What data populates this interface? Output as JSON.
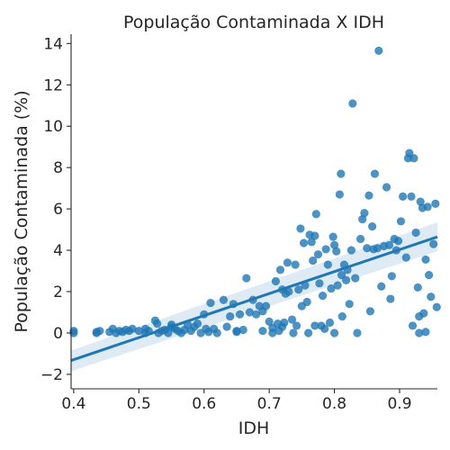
{
  "chart_data": {
    "type": "scatter",
    "title": "População Contaminada X IDH",
    "xlabel": "IDH",
    "ylabel": "População Contaminada (%)",
    "xlim": [
      0.396,
      0.958
    ],
    "ylim": [
      -2.7,
      14.45
    ],
    "xticks": [
      0.4,
      0.5,
      0.6,
      0.7,
      0.8,
      0.9
    ],
    "xtick_labels": [
      "0.4",
      "0.5",
      "0.6",
      "0.7",
      "0.8",
      "0.9"
    ],
    "yticks": [
      -2,
      0,
      2,
      4,
      6,
      8,
      10,
      12,
      14
    ],
    "ytick_labels": [
      "−2",
      "0",
      "2",
      "4",
      "6",
      "8",
      "10",
      "12",
      "14"
    ],
    "grid": false,
    "colors": {
      "points": "#1f77b4",
      "line": "#1f77b4",
      "band": "#1f77b4"
    },
    "regression": {
      "x": [
        0.396,
        0.958
      ],
      "y": [
        -1.33,
        4.65
      ],
      "ci_lower": [
        -1.85,
        3.95
      ],
      "ci_upper": [
        -0.85,
        5.35
      ]
    },
    "points": [
      [
        0.4,
        0.1
      ],
      [
        0.4,
        0.0
      ],
      [
        0.435,
        0.05
      ],
      [
        0.435,
        0.0
      ],
      [
        0.44,
        0.1
      ],
      [
        0.455,
        0.05
      ],
      [
        0.46,
        0.2
      ],
      [
        0.465,
        0.0
      ],
      [
        0.47,
        0.1
      ],
      [
        0.475,
        0.05
      ],
      [
        0.48,
        0.15
      ],
      [
        0.485,
        0.1
      ],
      [
        0.49,
        0.2
      ],
      [
        0.5,
        0.1
      ],
      [
        0.51,
        0.0
      ],
      [
        0.51,
        0.2
      ],
      [
        0.515,
        0.1
      ],
      [
        0.525,
        0.6
      ],
      [
        0.528,
        0.45
      ],
      [
        0.53,
        0.0
      ],
      [
        0.535,
        0.1
      ],
      [
        0.54,
        0.15
      ],
      [
        0.545,
        0.0
      ],
      [
        0.55,
        0.3
      ],
      [
        0.55,
        0.4
      ],
      [
        0.555,
        0.2
      ],
      [
        0.56,
        0.1
      ],
      [
        0.565,
        0.0
      ],
      [
        0.57,
        0.15
      ],
      [
        0.575,
        0.4
      ],
      [
        0.58,
        0.1
      ],
      [
        0.585,
        0.3
      ],
      [
        0.59,
        0.45
      ],
      [
        0.595,
        0.0
      ],
      [
        0.6,
        0.9
      ],
      [
        0.603,
        0.2
      ],
      [
        0.607,
        0.05
      ],
      [
        0.61,
        1.45
      ],
      [
        0.615,
        0.2
      ],
      [
        0.62,
        0.0
      ],
      [
        0.63,
        1.6
      ],
      [
        0.635,
        0.3
      ],
      [
        0.64,
        0.8
      ],
      [
        0.645,
        1.4
      ],
      [
        0.65,
        0.1
      ],
      [
        0.655,
        0.9
      ],
      [
        0.66,
        0.15
      ],
      [
        0.665,
        2.65
      ],
      [
        0.67,
        1.0
      ],
      [
        0.675,
        1.6
      ],
      [
        0.68,
        0.9
      ],
      [
        0.685,
        1.3
      ],
      [
        0.69,
        1.05
      ],
      [
        0.695,
        1.3
      ],
      [
        0.7,
        0.55
      ],
      [
        0.705,
        0.0
      ],
      [
        0.705,
        0.25
      ],
      [
        0.71,
        2.5
      ],
      [
        0.713,
        0.45
      ],
      [
        0.715,
        0.1
      ],
      [
        0.717,
        3.05
      ],
      [
        0.72,
        2.1
      ],
      [
        0.723,
        0.5
      ],
      [
        0.725,
        1.9
      ],
      [
        0.728,
        3.4
      ],
      [
        0.73,
        2.0
      ],
      [
        0.735,
        0.65
      ],
      [
        0.737,
        0.0
      ],
      [
        0.74,
        3.3
      ],
      [
        0.742,
        0.35
      ],
      [
        0.745,
        2.1
      ],
      [
        0.748,
        5.05
      ],
      [
        0.75,
        1.3
      ],
      [
        0.753,
        4.35
      ],
      [
        0.755,
        2.3
      ],
      [
        0.758,
        1.5
      ],
      [
        0.76,
        0.0
      ],
      [
        0.762,
        4.75
      ],
      [
        0.765,
        4.4
      ],
      [
        0.767,
        3.5
      ],
      [
        0.77,
        4.7
      ],
      [
        0.772,
        5.75
      ],
      [
        0.775,
        3.8
      ],
      [
        0.777,
        2.4
      ],
      [
        0.78,
        0.35
      ],
      [
        0.782,
        1.8
      ],
      [
        0.785,
        0.2
      ],
      [
        0.787,
        4.05
      ],
      [
        0.79,
        3.3
      ],
      [
        0.793,
        0.5
      ],
      [
        0.795,
        2.15
      ],
      [
        0.798,
        4.65
      ],
      [
        0.8,
        0.0
      ],
      [
        0.8,
        4.25
      ],
      [
        0.803,
        3.95
      ],
      [
        0.805,
        2.3
      ],
      [
        0.808,
        6.7
      ],
      [
        0.81,
        7.7
      ],
      [
        0.811,
        2.8
      ],
      [
        0.812,
        0.8
      ],
      [
        0.815,
        3.3
      ],
      [
        0.818,
        2.55
      ],
      [
        0.82,
        3.05
      ],
      [
        0.823,
        1.4
      ],
      [
        0.826,
        4.0
      ],
      [
        0.828,
        11.1
      ],
      [
        0.832,
        2.65
      ],
      [
        0.835,
        0.0
      ],
      [
        0.84,
        4.55
      ],
      [
        0.843,
        5.5
      ],
      [
        0.846,
        5.8
      ],
      [
        0.85,
        4.1
      ],
      [
        0.853,
        6.65
      ],
      [
        0.855,
        1.05
      ],
      [
        0.858,
        5.15
      ],
      [
        0.862,
        7.7
      ],
      [
        0.866,
        4.1
      ],
      [
        0.868,
        13.65
      ],
      [
        0.872,
        2.25
      ],
      [
        0.876,
        4.2
      ],
      [
        0.88,
        7.05
      ],
      [
        0.884,
        4.25
      ],
      [
        0.886,
        1.65
      ],
      [
        0.888,
        2.75
      ],
      [
        0.892,
        4.55
      ],
      [
        0.895,
        4.0
      ],
      [
        0.898,
        4.45
      ],
      [
        0.902,
        5.4
      ],
      [
        0.905,
        6.6
      ],
      [
        0.91,
        3.65
      ],
      [
        0.913,
        8.45
      ],
      [
        0.915,
        8.7
      ],
      [
        0.918,
        6.6
      ],
      [
        0.92,
        0.35
      ],
      [
        0.922,
        8.45
      ],
      [
        0.925,
        4.85
      ],
      [
        0.928,
        2.2
      ],
      [
        0.93,
        0.0
      ],
      [
        0.932,
        6.35
      ],
      [
        0.935,
        6.05
      ],
      [
        0.937,
        0.95
      ],
      [
        0.94,
        3.55
      ],
      [
        0.943,
        6.1
      ],
      [
        0.945,
        2.8
      ],
      [
        0.948,
        1.75
      ],
      [
        0.952,
        4.3
      ],
      [
        0.955,
        6.25
      ],
      [
        0.957,
        1.25
      ],
      [
        0.93,
        0.8
      ],
      [
        0.94,
        0.05
      ],
      [
        0.86,
        4.05
      ],
      [
        0.72,
        0.3
      ],
      [
        0.77,
        0.35
      ],
      [
        0.69,
        0.1
      ],
      [
        0.65,
        0.05
      ]
    ]
  }
}
